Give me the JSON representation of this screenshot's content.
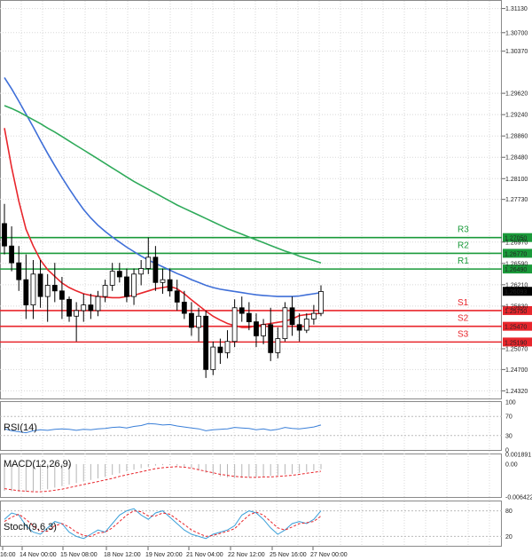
{
  "chart_data": {
    "type": "candlestick",
    "main": {
      "y_ticks": [
        "1.31130",
        "1.30700",
        "1.30370",
        "1.29620",
        "1.29240",
        "1.28860",
        "1.28480",
        "1.28100",
        "1.27730",
        "1.26970",
        "1.26590",
        "1.26210",
        "1.25830",
        "1.25070",
        "1.24700",
        "1.24320"
      ],
      "ylim": [
        1.242,
        1.3125
      ],
      "last_price": "1.26093",
      "candles": [
        [
          1.273,
          1.2765,
          1.2675,
          1.269
        ],
        [
          1.269,
          1.2725,
          1.2645,
          1.266
        ],
        [
          1.266,
          1.269,
          1.261,
          1.263
        ],
        [
          1.263,
          1.2675,
          1.256,
          1.2585
        ],
        [
          1.2585,
          1.2665,
          1.256,
          1.264
        ],
        [
          1.264,
          1.2665,
          1.258,
          1.26
        ],
        [
          1.26,
          1.264,
          1.2555,
          1.262
        ],
        [
          1.262,
          1.266,
          1.259,
          1.261
        ],
        [
          1.261,
          1.2635,
          1.256,
          1.2595
        ],
        [
          1.2595,
          1.26,
          1.2555,
          1.2565
        ],
        [
          1.2565,
          1.259,
          1.252,
          1.2575
        ],
        [
          1.2575,
          1.2605,
          1.2555,
          1.2585
        ],
        [
          1.2585,
          1.2605,
          1.256,
          1.2575
        ],
        [
          1.2575,
          1.261,
          1.2565,
          1.26
        ],
        [
          1.26,
          1.263,
          1.259,
          1.262
        ],
        [
          1.262,
          1.266,
          1.261,
          1.2645
        ],
        [
          1.2645,
          1.266,
          1.2625,
          1.2635
        ],
        [
          1.2635,
          1.265,
          1.259,
          1.26
        ],
        [
          1.26,
          1.265,
          1.2585,
          1.264
        ],
        [
          1.264,
          1.2665,
          1.262,
          1.265
        ],
        [
          1.265,
          1.2705,
          1.264,
          1.267
        ],
        [
          1.267,
          1.269,
          1.261,
          1.2625
        ],
        [
          1.2625,
          1.265,
          1.2605,
          1.263
        ],
        [
          1.263,
          1.265,
          1.26,
          1.261
        ],
        [
          1.261,
          1.263,
          1.2575,
          1.259
        ],
        [
          1.259,
          1.261,
          1.256,
          1.257
        ],
        [
          1.257,
          1.259,
          1.253,
          1.2545
        ],
        [
          1.2545,
          1.258,
          1.252,
          1.2565
        ],
        [
          1.2565,
          1.2575,
          1.2455,
          1.247
        ],
        [
          1.247,
          1.252,
          1.246,
          1.251
        ],
        [
          1.251,
          1.2525,
          1.248,
          1.25
        ],
        [
          1.25,
          1.254,
          1.249,
          1.252
        ],
        [
          1.252,
          1.2595,
          1.251,
          1.258
        ],
        [
          1.258,
          1.26,
          1.2555,
          1.257
        ],
        [
          1.257,
          1.259,
          1.254,
          1.2555
        ],
        [
          1.2555,
          1.257,
          1.251,
          1.253
        ],
        [
          1.253,
          1.256,
          1.2515,
          1.255
        ],
        [
          1.255,
          1.258,
          1.2485,
          1.25
        ],
        [
          1.25,
          1.2545,
          1.249,
          1.2525
        ],
        [
          1.2525,
          1.259,
          1.252,
          1.258
        ],
        [
          1.258,
          1.26,
          1.253,
          1.255
        ],
        [
          1.255,
          1.257,
          1.252,
          1.254
        ],
        [
          1.254,
          1.257,
          1.2535,
          1.256
        ],
        [
          1.256,
          1.2585,
          1.255,
          1.257
        ],
        [
          1.257,
          1.262,
          1.2565,
          1.2609
        ]
      ],
      "moving_averages": [
        {
          "color": "#e8262c",
          "values": [
            1.29,
            1.283,
            1.277,
            1.272,
            1.269,
            1.2665,
            1.2648,
            1.2636,
            1.2624,
            1.2616,
            1.261,
            1.2605,
            1.2602,
            1.26,
            1.2599,
            1.2598,
            1.2598,
            1.26,
            1.2602,
            1.2606,
            1.261,
            1.2614,
            1.2616,
            1.2618,
            1.2614,
            1.2605,
            1.2594,
            1.2584,
            1.2574,
            1.2565,
            1.2558,
            1.2552,
            1.2548,
            1.2545,
            1.2545,
            1.2548,
            1.255,
            1.2552,
            1.2554,
            1.2556,
            1.256,
            1.2566,
            1.2568,
            1.2569,
            1.257
          ]
        },
        {
          "color": "#3f6fd8",
          "values": [
            1.299,
            1.297,
            1.2948,
            1.2925,
            1.2902,
            1.2878,
            1.2855,
            1.2833,
            1.2812,
            1.2792,
            1.2773,
            1.2755,
            1.274,
            1.2727,
            1.2716,
            1.2706,
            1.2697,
            1.2688,
            1.268,
            1.2672,
            1.2665,
            1.2659,
            1.2653,
            1.2647,
            1.2641,
            1.2636,
            1.263,
            1.2625,
            1.262,
            1.2616,
            1.2613,
            1.2611,
            1.2609,
            1.2607,
            1.2605,
            1.2603,
            1.2602,
            1.2601,
            1.26,
            1.26,
            1.26,
            1.2601,
            1.2603,
            1.2605,
            1.2607
          ]
        },
        {
          "color": "#2faa5a",
          "values": [
            1.294,
            1.2935,
            1.2929,
            1.2922,
            1.2915,
            1.2908,
            1.29,
            1.2893,
            1.2885,
            1.2877,
            1.2869,
            1.2861,
            1.2853,
            1.2845,
            1.2837,
            1.2829,
            1.2821,
            1.2813,
            1.2805,
            1.2798,
            1.2791,
            1.2784,
            1.2777,
            1.277,
            1.2763,
            1.2757,
            1.2751,
            1.2745,
            1.2739,
            1.2733,
            1.2727,
            1.2721,
            1.2716,
            1.2711,
            1.2706,
            1.2701,
            1.2696,
            1.2691,
            1.2686,
            1.2681,
            1.2677,
            1.2672,
            1.2668,
            1.2664,
            1.266
          ]
        }
      ],
      "levels": [
        {
          "name": "R3",
          "value": "1.27050",
          "color": "#1a9a3a"
        },
        {
          "name": "R2",
          "value": "1.26770",
          "color": "#1a9a3a"
        },
        {
          "name": "R1",
          "value": "1.26490",
          "color": "#1a9a3a"
        },
        {
          "name": "S1",
          "value": "1.25750",
          "color": "#e8262c"
        },
        {
          "name": "S2",
          "value": "1.25470",
          "color": "#e8262c"
        },
        {
          "name": "S3",
          "value": "1.25190",
          "color": "#e8262c"
        }
      ]
    },
    "x_ticks": [
      "16:00",
      "14 Nov 00:00",
      "15 Nov 08:00",
      "18 Nov 12:00",
      "19 Nov 20:00",
      "21 Nov 04:00",
      "22 Nov 12:00",
      "25 Nov 16:00",
      "27 Nov 00:00"
    ],
    "rsi": {
      "label": "RSI(14)",
      "y_ticks": [
        "100",
        "70",
        "30",
        "0"
      ],
      "color": "#3a7fd8",
      "values": [
        44,
        40,
        38,
        36,
        40,
        42,
        41,
        43,
        44,
        43,
        41,
        43,
        42,
        44,
        45,
        47,
        48,
        46,
        49,
        51,
        55,
        54,
        52,
        53,
        50,
        48,
        46,
        44,
        40,
        42,
        43,
        44,
        47,
        46,
        45,
        42,
        44,
        41,
        43,
        47,
        45,
        44,
        46,
        48,
        52
      ]
    },
    "macd": {
      "label": "MACD(12,26,9)",
      "y_ticks": [
        "0.001891",
        "0.00",
        "-0.006422"
      ],
      "ylim": [
        -0.006422,
        0.001891
      ],
      "histogram": [
        -0.0052,
        -0.0053,
        -0.0054,
        -0.0054,
        -0.0053,
        -0.0051,
        -0.0049,
        -0.0046,
        -0.0043,
        -0.004,
        -0.0037,
        -0.0034,
        -0.0031,
        -0.0028,
        -0.0025,
        -0.0021,
        -0.0018,
        -0.0014,
        -0.0011,
        -0.0008,
        -0.0005,
        -0.0003,
        -0.0002,
        -0.0002,
        -0.0003,
        -0.0005,
        -0.0008,
        -0.0012,
        -0.0017,
        -0.0021,
        -0.0024,
        -0.0026,
        -0.0027,
        -0.0027,
        -0.0026,
        -0.0025,
        -0.0024,
        -0.0023,
        -0.0022,
        -0.002,
        -0.0019,
        -0.0017,
        -0.0015,
        -0.0013,
        -0.001
      ],
      "signal": [
        -0.0048,
        -0.005,
        -0.0052,
        -0.0053,
        -0.0054,
        -0.0054,
        -0.0053,
        -0.0051,
        -0.0049,
        -0.0046,
        -0.0043,
        -0.004,
        -0.0037,
        -0.0034,
        -0.0031,
        -0.0028,
        -0.0024,
        -0.0021,
        -0.0018,
        -0.0015,
        -0.0012,
        -0.0009,
        -0.0007,
        -0.0006,
        -0.0005,
        -0.0006,
        -0.0008,
        -0.0011,
        -0.0014,
        -0.0017,
        -0.002,
        -0.0022,
        -0.0024,
        -0.0025,
        -0.0026,
        -0.0026,
        -0.0025,
        -0.0025,
        -0.0024,
        -0.0023,
        -0.0022,
        -0.002,
        -0.0018,
        -0.0016,
        -0.0014
      ],
      "signal_color": "#e8262c"
    },
    "stoch": {
      "label": "Stoch(9,6,3)",
      "y_ticks": [
        "80",
        "20"
      ],
      "k_color": "#3a9fd8",
      "d_color": "#e8262c",
      "k": [
        60,
        75,
        70,
        45,
        30,
        25,
        40,
        55,
        50,
        30,
        20,
        15,
        25,
        35,
        30,
        50,
        70,
        80,
        85,
        70,
        60,
        75,
        80,
        65,
        50,
        35,
        25,
        20,
        15,
        25,
        30,
        35,
        45,
        70,
        80,
        75,
        60,
        40,
        25,
        35,
        50,
        55,
        50,
        60,
        80
      ],
      "d": [
        55,
        65,
        72,
        60,
        45,
        32,
        32,
        45,
        50,
        42,
        30,
        22,
        20,
        28,
        30,
        40,
        55,
        70,
        80,
        78,
        68,
        68,
        75,
        72,
        60,
        48,
        35,
        27,
        20,
        22,
        27,
        32,
        38,
        55,
        70,
        77,
        70,
        55,
        40,
        35,
        42,
        50,
        52,
        55,
        68
      ]
    }
  }
}
